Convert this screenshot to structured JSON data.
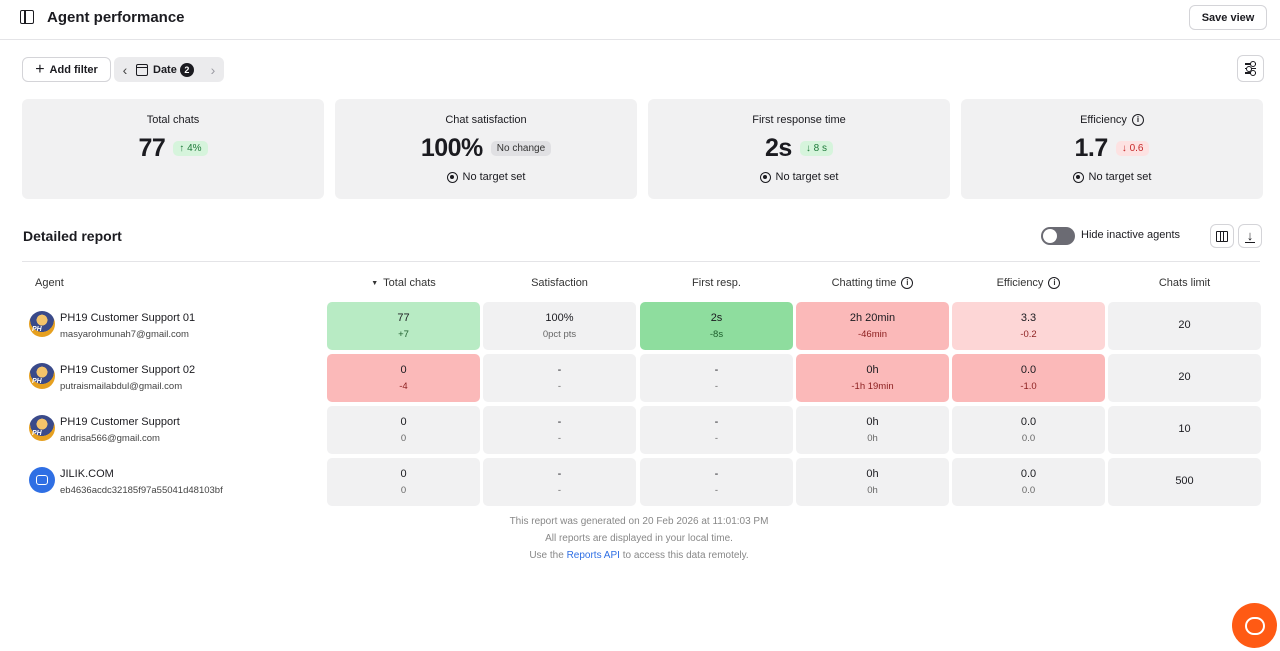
{
  "header": {
    "title": "Agent performance",
    "save_view": "Save view"
  },
  "filters": {
    "add_filter": "Add filter",
    "date_label": "Date",
    "date_count": "2"
  },
  "cards": [
    {
      "label": "Total chats",
      "value": "77",
      "change": "4%",
      "change_dir": "up",
      "target": ""
    },
    {
      "label": "Chat satisfaction",
      "value": "100%",
      "change": "No change",
      "change_dir": "none",
      "target": "No target set"
    },
    {
      "label": "First response time",
      "value": "2s",
      "change": "8 s",
      "change_dir": "down",
      "target": "No target set"
    },
    {
      "label": "Efficiency",
      "value": "1.7",
      "change": "0.6",
      "change_dir": "down",
      "target": "No target set"
    }
  ],
  "report": {
    "title": "Detailed report",
    "hide_inactive_label": "Hide inactive agents",
    "columns": [
      "Agent",
      "Total chats",
      "Satisfaction",
      "First resp.",
      "Chatting time",
      "Efficiency",
      "Chats limit"
    ],
    "rows": [
      {
        "name": "PH19 Customer Support 01",
        "email": "masyarohmunah7@gmail.com",
        "total_chats": [
          "77",
          "+7"
        ],
        "satisfaction": [
          "100%",
          "0pct pts"
        ],
        "first_resp": [
          "2s",
          "-8s"
        ],
        "chatting_time": [
          "2h 20min",
          "-46min"
        ],
        "efficiency": [
          "3.3",
          "-0.2"
        ],
        "chats_limit": "20"
      },
      {
        "name": "PH19 Customer Support 02",
        "email": "putraismailabdul@gmail.com",
        "total_chats": [
          "0",
          "-4"
        ],
        "satisfaction": [
          "-",
          "-"
        ],
        "first_resp": [
          "-",
          "-"
        ],
        "chatting_time": [
          "0h",
          "-1h 19min"
        ],
        "efficiency": [
          "0.0",
          "-1.0"
        ],
        "chats_limit": "20"
      },
      {
        "name": "PH19 Customer Support",
        "email": "andrisa566@gmail.com",
        "total_chats": [
          "0",
          "0"
        ],
        "satisfaction": [
          "-",
          "-"
        ],
        "first_resp": [
          "-",
          "-"
        ],
        "chatting_time": [
          "0h",
          "0h"
        ],
        "efficiency": [
          "0.0",
          "0.0"
        ],
        "chats_limit": "10"
      },
      {
        "name": "JILIK.COM",
        "email": "eb4636acdc32185f97a55041d48103bf",
        "total_chats": [
          "0",
          "0"
        ],
        "satisfaction": [
          "-",
          "-"
        ],
        "first_resp": [
          "-",
          "-"
        ],
        "chatting_time": [
          "0h",
          "0h"
        ],
        "efficiency": [
          "0.0",
          "0.0"
        ],
        "chats_limit": "500"
      }
    ]
  },
  "footer": {
    "generated": "This report was generated on 20 Feb 2026 at 11:01:03 PM",
    "local_time": "All reports are displayed in your local time.",
    "api_prefix": "Use the",
    "api_link": "Reports API",
    "api_suffix": "to access this data remotely."
  },
  "colors": {
    "accent": "#2f6fe4",
    "fab": "#ff5a14",
    "good_strong": "#8edd9e",
    "good_light": "#b8ebc4",
    "bad_strong": "#fbb9b9",
    "bad_light": "#fdd6d6"
  }
}
